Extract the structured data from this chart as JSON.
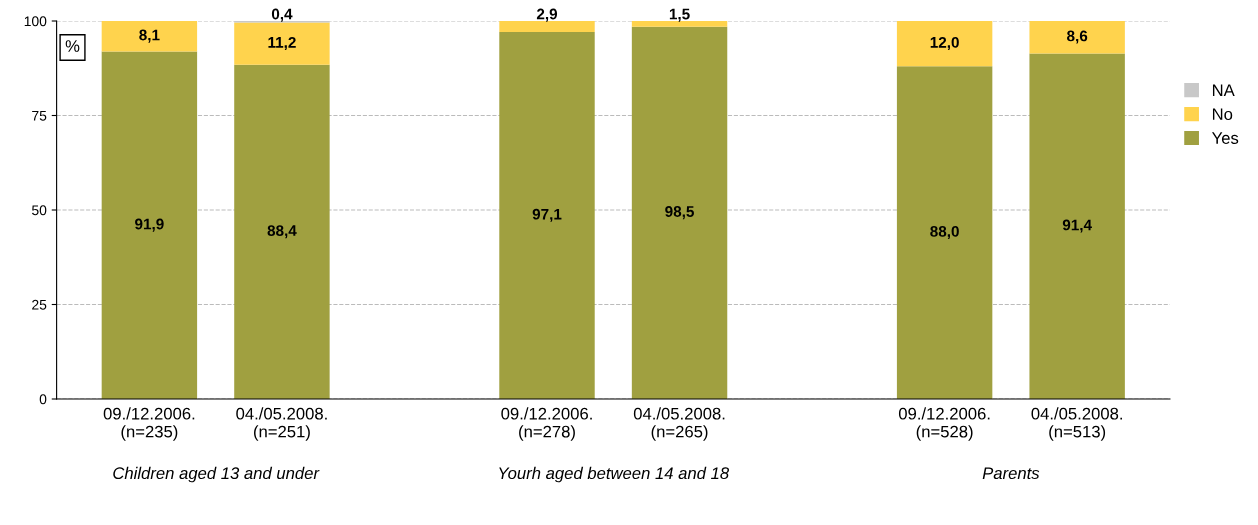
{
  "chart_data": {
    "type": "bar",
    "stacked": true,
    "ylabel": "%",
    "categories": [
      "09./12.2006.\n(n=235)",
      "04./05.2008.\n(n=251)",
      null,
      "09./12.2006.\n(n=278)",
      "04./05.2008.\n(n=265)",
      null,
      "09./12.2006.\n(n=528)",
      "04./05.2008.\n(n=513)"
    ],
    "series": [
      {
        "name": "Yes",
        "color": "#a0a040",
        "values": [
          91.9,
          88.4,
          null,
          97.1,
          98.5,
          null,
          88.0,
          91.4
        ],
        "value_labels": [
          "91,9",
          "88,4",
          null,
          "97,1",
          "98,5",
          null,
          "88,0",
          "91,4"
        ]
      },
      {
        "name": "No",
        "color": "#ffd34d",
        "values": [
          8.1,
          11.2,
          null,
          2.9,
          1.5,
          null,
          12.0,
          8.6
        ],
        "value_labels": [
          "8,1",
          "11,2",
          null,
          "2,9",
          "1,5",
          null,
          "12,0",
          "8,6"
        ]
      },
      {
        "name": "NA",
        "color": "#c8c8c8",
        "values": [
          null,
          0.4,
          null,
          null,
          null,
          null,
          null,
          null
        ],
        "value_labels": [
          null,
          "0,4",
          null,
          null,
          null,
          null,
          null,
          null
        ]
      }
    ],
    "ylim": [
      0,
      100
    ],
    "yticks": [
      0,
      25,
      50,
      75,
      100
    ],
    "grid": "y",
    "legend": "right",
    "annotations": [
      "Children aged 13 and under",
      "Yourh aged between 14 and 18",
      "Parents"
    ]
  }
}
